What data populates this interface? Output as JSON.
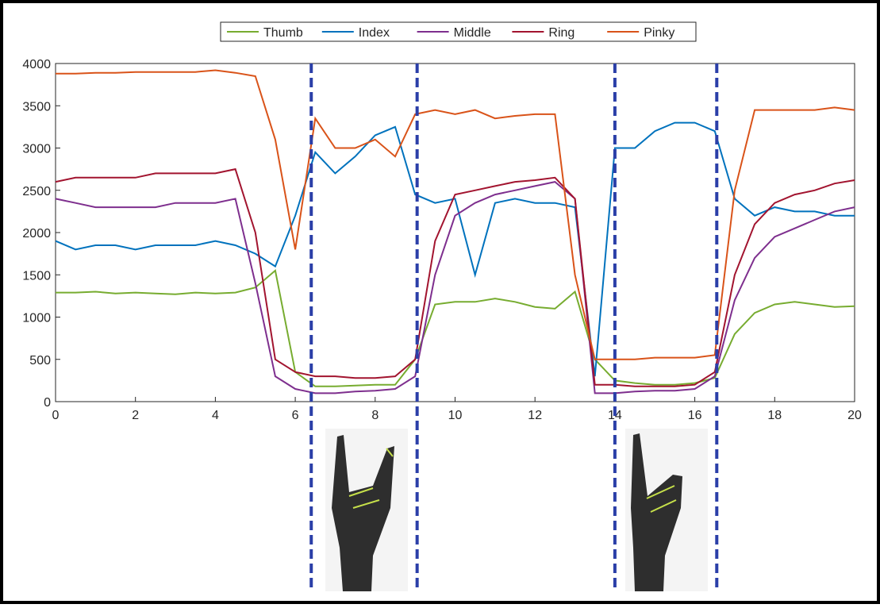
{
  "chart_data": {
    "type": "line",
    "x": [
      0,
      0.5,
      1,
      1.5,
      2,
      2.5,
      3,
      3.5,
      4,
      4.5,
      5,
      5.5,
      6,
      6.5,
      7,
      7.5,
      8,
      8.5,
      9,
      9.5,
      10,
      10.5,
      11,
      11.5,
      12,
      12.5,
      13,
      13.5,
      14,
      14.5,
      15,
      15.5,
      16,
      16.5,
      17,
      17.5,
      18,
      18.5,
      19,
      19.5,
      20
    ],
    "series": [
      {
        "name": "Thumb",
        "color": "#77ac30",
        "values": [
          1290,
          1290,
          1300,
          1280,
          1290,
          1280,
          1270,
          1290,
          1280,
          1290,
          1350,
          1550,
          350,
          180,
          180,
          190,
          200,
          200,
          500,
          1150,
          1180,
          1180,
          1220,
          1180,
          1120,
          1100,
          1300,
          500,
          250,
          220,
          200,
          200,
          220,
          280,
          800,
          1050,
          1150,
          1180,
          1150,
          1120,
          1130
        ]
      },
      {
        "name": "Index",
        "color": "#0072bd",
        "values": [
          1900,
          1800,
          1850,
          1850,
          1800,
          1850,
          1850,
          1850,
          1900,
          1850,
          1750,
          1600,
          2200,
          2950,
          2700,
          2900,
          3150,
          3250,
          2450,
          2350,
          2400,
          1500,
          2350,
          2400,
          2350,
          2350,
          2300,
          300,
          3000,
          3000,
          3200,
          3300,
          3300,
          3200,
          2400,
          2200,
          2300,
          2250,
          2250,
          2200,
          2200
        ]
      },
      {
        "name": "Middle",
        "color": "#7e2f8e",
        "values": [
          2400,
          2350,
          2300,
          2300,
          2300,
          2300,
          2350,
          2350,
          2350,
          2400,
          1400,
          300,
          150,
          100,
          100,
          120,
          130,
          150,
          300,
          1500,
          2200,
          2350,
          2450,
          2500,
          2550,
          2600,
          2400,
          100,
          100,
          120,
          130,
          130,
          150,
          300,
          1200,
          1700,
          1950,
          2050,
          2150,
          2250,
          2300
        ]
      },
      {
        "name": "Ring",
        "color": "#a2142f",
        "values": [
          2600,
          2650,
          2650,
          2650,
          2650,
          2700,
          2700,
          2700,
          2700,
          2750,
          2000,
          500,
          350,
          300,
          300,
          280,
          280,
          300,
          500,
          1900,
          2450,
          2500,
          2550,
          2600,
          2620,
          2650,
          2400,
          200,
          200,
          180,
          180,
          180,
          200,
          350,
          1500,
          2100,
          2350,
          2450,
          2500,
          2580,
          2620
        ]
      },
      {
        "name": "Pinky",
        "color": "#d95319",
        "values": [
          3880,
          3880,
          3890,
          3890,
          3900,
          3900,
          3900,
          3900,
          3920,
          3890,
          3850,
          3100,
          1800,
          3350,
          3000,
          3000,
          3100,
          2900,
          3400,
          3450,
          3400,
          3450,
          3350,
          3380,
          3400,
          3400,
          1500,
          500,
          500,
          500,
          520,
          520,
          520,
          550,
          2500,
          3450,
          3450,
          3450,
          3450,
          3480,
          3450
        ]
      }
    ],
    "xlim": [
      0,
      20
    ],
    "xticks": [
      0,
      2,
      4,
      6,
      8,
      10,
      12,
      14,
      16,
      18,
      20
    ],
    "ylim": [
      0,
      4000
    ],
    "yticks": [
      0,
      500,
      1000,
      1500,
      2000,
      2500,
      3000,
      3500,
      4000
    ],
    "vlines": [
      6.4,
      9.05,
      14,
      16.55
    ],
    "vline_color": "#2b3fa8"
  }
}
